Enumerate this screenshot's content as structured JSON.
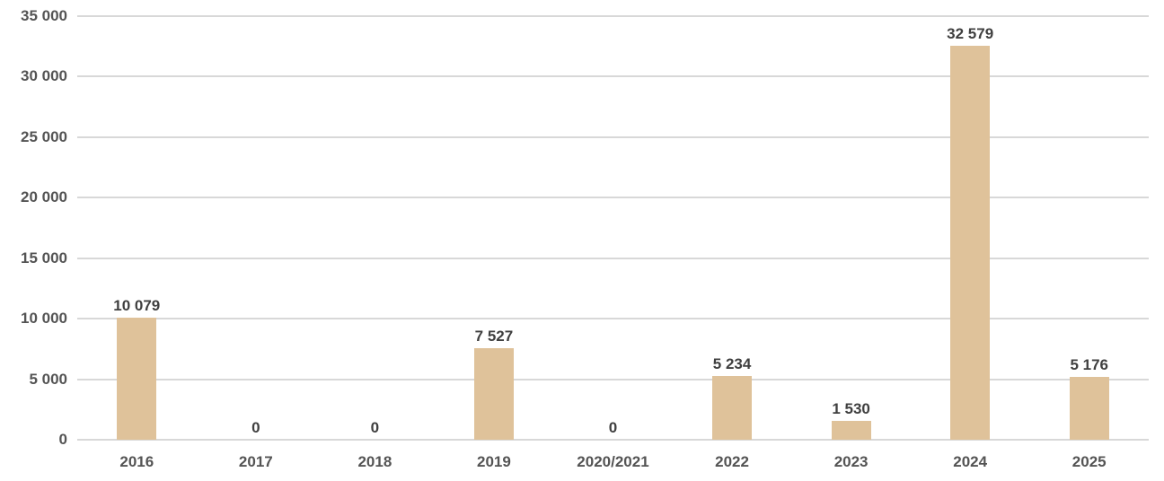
{
  "chart_data": {
    "type": "bar",
    "title": "",
    "xlabel": "",
    "ylabel": "",
    "categories": [
      "2016",
      "2017",
      "2018",
      "2019",
      "2020/2021",
      "2022",
      "2023",
      "2024",
      "2025"
    ],
    "values": [
      10079,
      0,
      0,
      7527,
      0,
      5234,
      1530,
      32579,
      5176
    ],
    "value_labels": [
      "10 079",
      "0",
      "0",
      "7 527",
      "0",
      "5 234",
      "1 530",
      "32 579",
      "5 176"
    ],
    "ylim": [
      0,
      35000
    ],
    "y_tick_interval": 5000,
    "y_tick_labels": [
      "0",
      "5 000",
      "10 000",
      "15 000",
      "20 000",
      "25 000",
      "30 000",
      "35 000"
    ],
    "grid": "horizontal",
    "legend": "none",
    "colors": {
      "bar": "#DFC29A",
      "gridline": "#D8D8D8",
      "axis_tick_text": "#545454",
      "value_label_text": "#3F3F3F"
    }
  }
}
